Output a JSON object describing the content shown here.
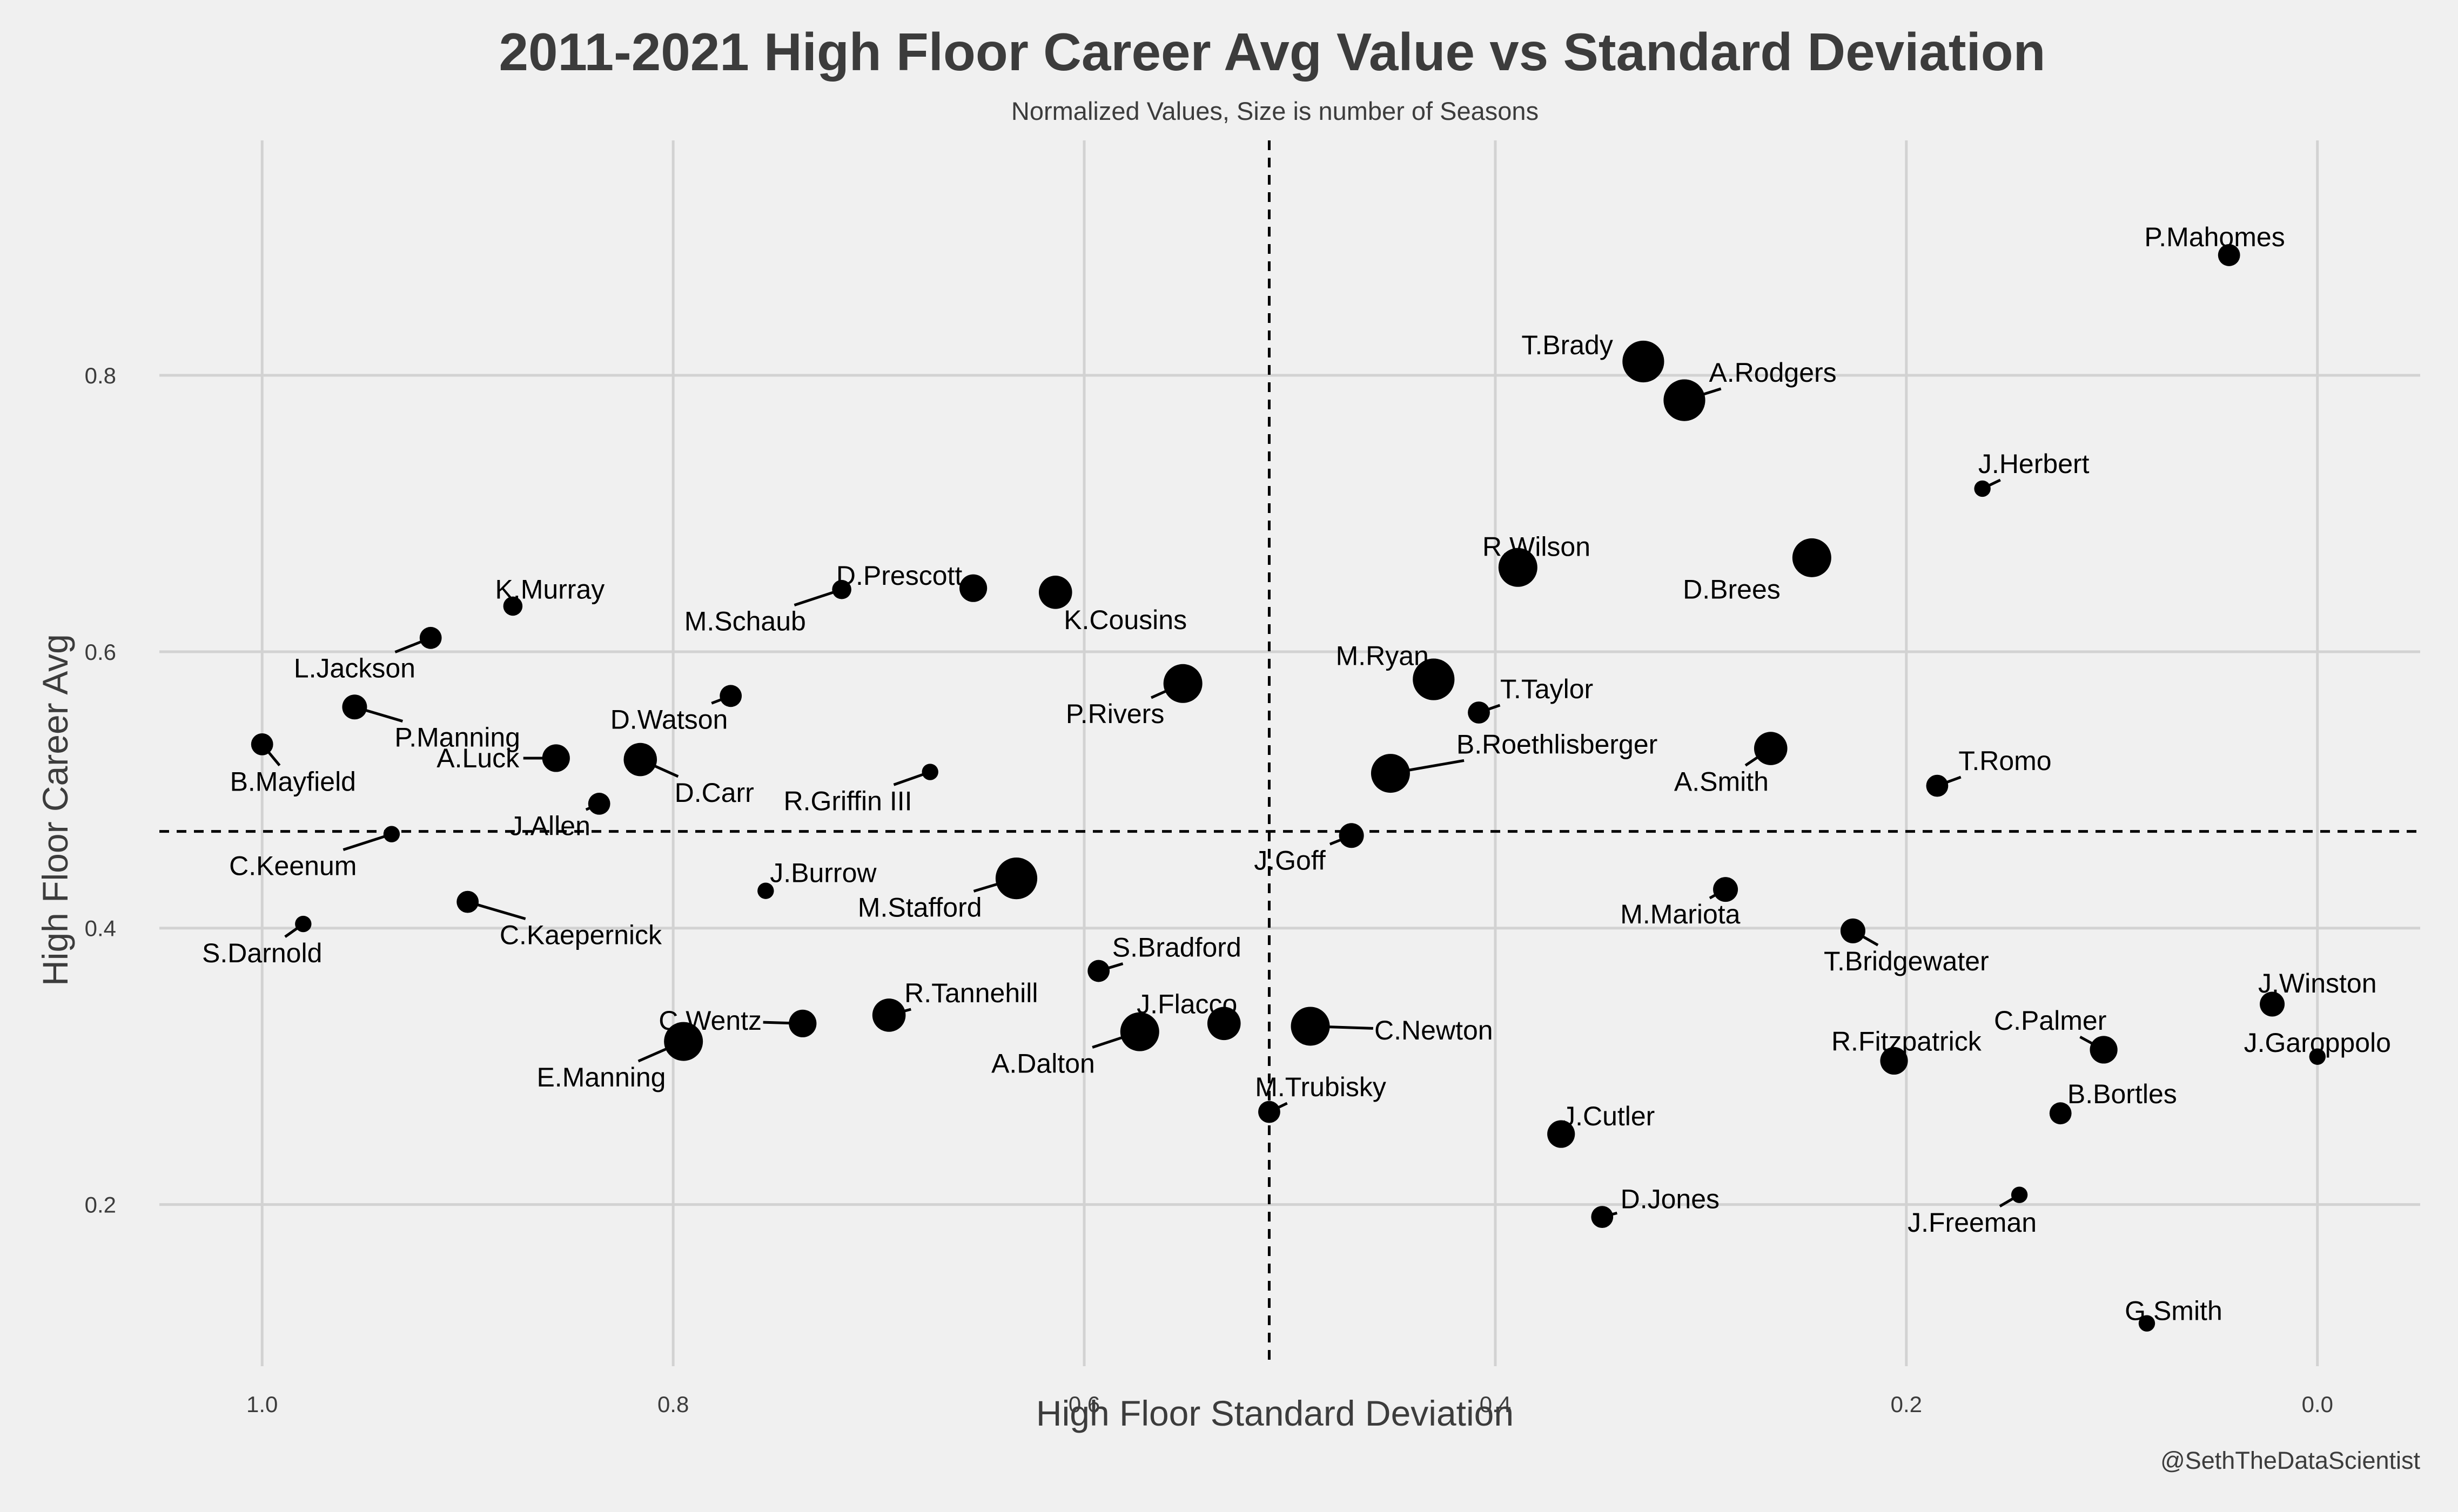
{
  "chart_data": {
    "type": "scatter",
    "title": "2011-2021 High Floor Career Avg Value vs Standard Deviation",
    "subtitle": "Normalized Values, Size is number of Seasons",
    "xlabel": "High Floor Standard Deviation",
    "ylabel": "High Floor Career Avg",
    "caption": "@SethTheDataScientist",
    "x_reversed": true,
    "xlim": [
      1.05,
      -0.05
    ],
    "ylim": [
      0.083,
      0.97
    ],
    "x_ticks": [
      {
        "value": 1.0,
        "label": "1.0"
      },
      {
        "value": 0.8,
        "label": "0.8"
      },
      {
        "value": 0.6,
        "label": "0.6"
      },
      {
        "value": 0.4,
        "label": "0.4"
      },
      {
        "value": 0.2,
        "label": "0.2"
      },
      {
        "value": 0.0,
        "label": "0.0"
      }
    ],
    "y_ticks": [
      {
        "value": 0.2,
        "label": "0.2"
      },
      {
        "value": 0.4,
        "label": "0.4"
      },
      {
        "value": 0.6,
        "label": "0.6"
      },
      {
        "value": 0.8,
        "label": "0.8"
      }
    ],
    "grid": true,
    "reference_lines": {
      "x_mean": 0.51,
      "y_mean": 0.47
    },
    "colors": {
      "background": "#f0f0f0",
      "grid": "#d2d2d2",
      "point": "#000000",
      "text": "#3c3c3c"
    },
    "points": [
      {
        "label": "P.Mahomes",
        "x": 0.043,
        "y": 0.887,
        "seasons": 4,
        "lx": 0.05,
        "ly": 0.9,
        "anchor": "middle",
        "leader": false
      },
      {
        "label": "T.Brady",
        "x": 0.328,
        "y": 0.81,
        "seasons": 11,
        "lx": 0.365,
        "ly": 0.822,
        "anchor": "middle",
        "leader": false
      },
      {
        "label": "A.Rodgers",
        "x": 0.308,
        "y": 0.782,
        "seasons": 11,
        "lx": 0.265,
        "ly": 0.802,
        "anchor": "middle",
        "leader": true
      },
      {
        "label": "J.Herbert",
        "x": 0.163,
        "y": 0.718,
        "seasons": 2,
        "lx": 0.138,
        "ly": 0.736,
        "anchor": "middle",
        "leader": true
      },
      {
        "label": "D.Brees",
        "x": 0.246,
        "y": 0.668,
        "seasons": 10,
        "lx": 0.285,
        "ly": 0.645,
        "anchor": "middle",
        "leader": false
      },
      {
        "label": "R.Wilson",
        "x": 0.389,
        "y": 0.661,
        "seasons": 10,
        "lx": 0.38,
        "ly": 0.676,
        "anchor": "middle",
        "leader": false
      },
      {
        "label": "D.Prescott",
        "x": 0.654,
        "y": 0.646,
        "seasons": 6,
        "lx": 0.69,
        "ly": 0.655,
        "anchor": "middle",
        "leader": true
      },
      {
        "label": "K.Cousins",
        "x": 0.614,
        "y": 0.643,
        "seasons": 8,
        "lx": 0.58,
        "ly": 0.623,
        "anchor": "middle",
        "leader": false
      },
      {
        "label": "M.Schaub",
        "x": 0.718,
        "y": 0.645,
        "seasons": 3,
        "lx": 0.765,
        "ly": 0.622,
        "anchor": "middle",
        "leader": true
      },
      {
        "label": "K.Murray",
        "x": 0.878,
        "y": 0.633,
        "seasons": 3,
        "lx": 0.86,
        "ly": 0.645,
        "anchor": "middle",
        "leader": true
      },
      {
        "label": "L.Jackson",
        "x": 0.918,
        "y": 0.61,
        "seasons": 4,
        "lx": 0.955,
        "ly": 0.588,
        "anchor": "middle",
        "leader": true
      },
      {
        "label": "M.Ryan",
        "x": 0.43,
        "y": 0.58,
        "seasons": 11,
        "lx": 0.455,
        "ly": 0.597,
        "anchor": "middle",
        "leader": true
      },
      {
        "label": "P.Rivers",
        "x": 0.552,
        "y": 0.577,
        "seasons": 10,
        "lx": 0.585,
        "ly": 0.555,
        "anchor": "middle",
        "leader": true
      },
      {
        "label": "T.Taylor",
        "x": 0.408,
        "y": 0.556,
        "seasons": 4,
        "lx": 0.375,
        "ly": 0.573,
        "anchor": "middle",
        "leader": true
      },
      {
        "label": "P.Manning",
        "x": 0.955,
        "y": 0.56,
        "seasons": 5,
        "lx": 0.905,
        "ly": 0.538,
        "anchor": "middle",
        "leader": true
      },
      {
        "label": "D.Watson",
        "x": 0.772,
        "y": 0.568,
        "seasons": 4,
        "lx": 0.802,
        "ly": 0.551,
        "anchor": "middle",
        "leader": true
      },
      {
        "label": "B.Mayfield",
        "x": 1.0,
        "y": 0.533,
        "seasons": 4,
        "lx": 0.985,
        "ly": 0.506,
        "anchor": "middle",
        "leader": true
      },
      {
        "label": "A.Luck",
        "x": 0.857,
        "y": 0.523,
        "seasons": 6,
        "lx": 0.895,
        "ly": 0.523,
        "anchor": "middle",
        "leader": true
      },
      {
        "label": "D.Carr",
        "x": 0.816,
        "y": 0.522,
        "seasons": 8,
        "lx": 0.78,
        "ly": 0.498,
        "anchor": "middle",
        "leader": true
      },
      {
        "label": "B.Roethlisberger",
        "x": 0.451,
        "y": 0.512,
        "seasons": 10,
        "lx": 0.37,
        "ly": 0.533,
        "anchor": "middle",
        "leader": true
      },
      {
        "label": "A.Smith",
        "x": 0.266,
        "y": 0.53,
        "seasons": 8,
        "lx": 0.29,
        "ly": 0.506,
        "anchor": "middle",
        "leader": true
      },
      {
        "label": "T.Romo",
        "x": 0.185,
        "y": 0.503,
        "seasons": 4,
        "lx": 0.152,
        "ly": 0.521,
        "anchor": "middle",
        "leader": true
      },
      {
        "label": "R.Griffin III",
        "x": 0.675,
        "y": 0.513,
        "seasons": 2,
        "lx": 0.715,
        "ly": 0.492,
        "anchor": "middle",
        "leader": true
      },
      {
        "label": "J.Allen",
        "x": 0.836,
        "y": 0.49,
        "seasons": 4,
        "lx": 0.86,
        "ly": 0.474,
        "anchor": "middle",
        "leader": true
      },
      {
        "label": "C.Keenum",
        "x": 0.937,
        "y": 0.468,
        "seasons": 2,
        "lx": 0.985,
        "ly": 0.445,
        "anchor": "middle",
        "leader": true
      },
      {
        "label": "J.Goff",
        "x": 0.47,
        "y": 0.467,
        "seasons": 5,
        "lx": 0.5,
        "ly": 0.449,
        "anchor": "middle",
        "leader": true
      },
      {
        "label": "J.Burrow",
        "x": 0.755,
        "y": 0.427,
        "seasons": 2,
        "lx": 0.727,
        "ly": 0.44,
        "anchor": "middle",
        "leader": true
      },
      {
        "label": "M.Stafford",
        "x": 0.633,
        "y": 0.436,
        "seasons": 11,
        "lx": 0.68,
        "ly": 0.415,
        "anchor": "middle",
        "leader": true
      },
      {
        "label": "M.Mariota",
        "x": 0.288,
        "y": 0.428,
        "seasons": 5,
        "lx": 0.31,
        "ly": 0.41,
        "anchor": "middle",
        "leader": true
      },
      {
        "label": "C.Kaepernick",
        "x": 0.9,
        "y": 0.419,
        "seasons": 4,
        "lx": 0.845,
        "ly": 0.395,
        "anchor": "middle",
        "leader": true
      },
      {
        "label": "S.Darnold",
        "x": 0.98,
        "y": 0.403,
        "seasons": 2,
        "lx": 1.0,
        "ly": 0.382,
        "anchor": "middle",
        "leader": true
      },
      {
        "label": "T.Bridgewater",
        "x": 0.226,
        "y": 0.398,
        "seasons": 5,
        "lx": 0.2,
        "ly": 0.376,
        "anchor": "middle",
        "leader": true
      },
      {
        "label": "S.Bradford",
        "x": 0.593,
        "y": 0.369,
        "seasons": 4,
        "lx": 0.555,
        "ly": 0.386,
        "anchor": "middle",
        "leader": true
      },
      {
        "label": "J.Winston",
        "x": 0.022,
        "y": 0.345,
        "seasons": 5,
        "lx": 0.0,
        "ly": 0.36,
        "anchor": "middle",
        "leader": true
      },
      {
        "label": "R.Tannehill",
        "x": 0.695,
        "y": 0.337,
        "seasons": 8,
        "lx": 0.655,
        "ly": 0.353,
        "anchor": "middle",
        "leader": true
      },
      {
        "label": "C.Wentz",
        "x": 0.737,
        "y": 0.331,
        "seasons": 6,
        "lx": 0.782,
        "ly": 0.333,
        "anchor": "middle",
        "leader": true
      },
      {
        "label": "J.Flacco",
        "x": 0.532,
        "y": 0.331,
        "seasons": 8,
        "lx": 0.55,
        "ly": 0.345,
        "anchor": "middle",
        "leader": true
      },
      {
        "label": "C.Newton",
        "x": 0.49,
        "y": 0.329,
        "seasons": 10,
        "lx": 0.43,
        "ly": 0.326,
        "anchor": "middle",
        "leader": true
      },
      {
        "label": "C.Palmer",
        "x": 0.104,
        "y": 0.312,
        "seasons": 6,
        "lx": 0.13,
        "ly": 0.333,
        "anchor": "middle",
        "leader": true
      },
      {
        "label": "A.Dalton",
        "x": 0.573,
        "y": 0.325,
        "seasons": 10,
        "lx": 0.62,
        "ly": 0.302,
        "anchor": "middle",
        "leader": true
      },
      {
        "label": "E.Manning",
        "x": 0.795,
        "y": 0.318,
        "seasons": 10,
        "lx": 0.835,
        "ly": 0.292,
        "anchor": "middle",
        "leader": true
      },
      {
        "label": "J.Garoppolo",
        "x": 0.0,
        "y": 0.307,
        "seasons": 2,
        "lx": 0.0,
        "ly": 0.317,
        "anchor": "middle",
        "leader": false
      },
      {
        "label": "R.Fitzpatrick",
        "x": 0.206,
        "y": 0.304,
        "seasons": 6,
        "lx": 0.2,
        "ly": 0.318,
        "anchor": "middle",
        "leader": true
      },
      {
        "label": "M.Trubisky",
        "x": 0.51,
        "y": 0.267,
        "seasons": 4,
        "lx": 0.485,
        "ly": 0.285,
        "anchor": "middle",
        "leader": true
      },
      {
        "label": "B.Bortles",
        "x": 0.125,
        "y": 0.266,
        "seasons": 4,
        "lx": 0.095,
        "ly": 0.28,
        "anchor": "middle",
        "leader": true
      },
      {
        "label": "J.Cutler",
        "x": 0.368,
        "y": 0.251,
        "seasons": 6,
        "lx": 0.345,
        "ly": 0.264,
        "anchor": "middle",
        "leader": true
      },
      {
        "label": "D.Jones",
        "x": 0.348,
        "y": 0.191,
        "seasons": 4,
        "lx": 0.315,
        "ly": 0.204,
        "anchor": "middle",
        "leader": true
      },
      {
        "label": "J.Freeman",
        "x": 0.145,
        "y": 0.207,
        "seasons": 2,
        "lx": 0.168,
        "ly": 0.187,
        "anchor": "middle",
        "leader": true
      },
      {
        "label": "G.Smith",
        "x": 0.083,
        "y": 0.114,
        "seasons": 2,
        "lx": 0.07,
        "ly": 0.123,
        "anchor": "middle",
        "leader": true
      }
    ]
  }
}
